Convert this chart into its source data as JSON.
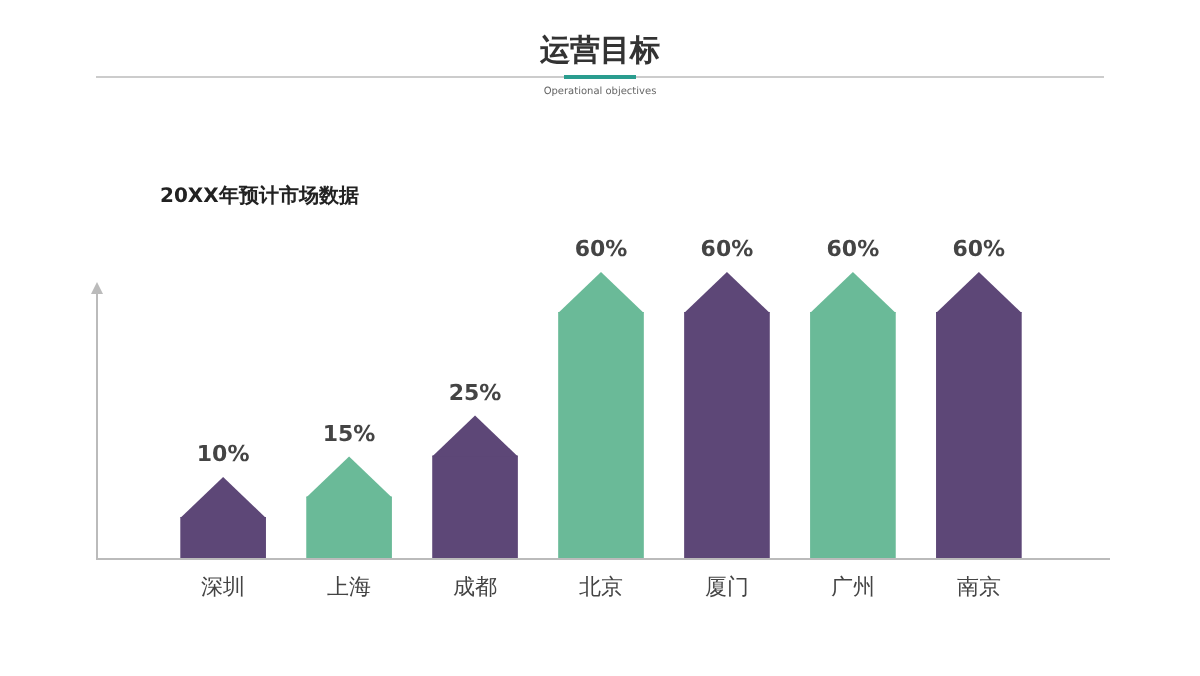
{
  "chart_data": {
    "type": "bar",
    "title": "运营目标",
    "subtitle": "Operational objectives",
    "annotations": [
      "20XX年预计市场数据"
    ],
    "categories": [
      "深圳",
      "上海",
      "成都",
      "北京",
      "厦门",
      "广州",
      "南京"
    ],
    "values": [
      10,
      15,
      25,
      60,
      60,
      60,
      60
    ],
    "value_labels": [
      "10%",
      "15%",
      "25%",
      "60%",
      "60%",
      "60%",
      "60%"
    ],
    "colors": [
      "#5d4777",
      "#6aba98",
      "#5d4777",
      "#6aba98",
      "#5d4777",
      "#6aba98",
      "#5d4777"
    ],
    "data_labels": true
  }
}
